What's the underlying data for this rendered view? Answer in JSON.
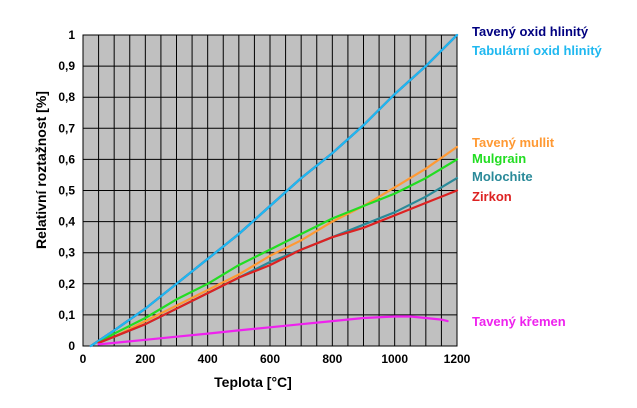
{
  "chart_data": {
    "type": "line",
    "xlabel": "Teplota [°C]",
    "ylabel": "Relativní roztažnost [%]",
    "xlim": [
      0,
      1200
    ],
    "ylim": [
      0,
      1
    ],
    "x_ticks": [
      "0",
      "200",
      "400",
      "600",
      "800",
      "1000",
      "1200"
    ],
    "y_ticks": [
      "0",
      "0,1",
      "0,2",
      "0,3",
      "0,4",
      "0,5",
      "0,6",
      "0,7",
      "0,8",
      "0,9",
      "1"
    ],
    "grid": true,
    "legend_position": "right",
    "series": [
      {
        "name": "Tavený oxid hlinitý",
        "color": "#000080",
        "x": [
          25,
          100,
          200,
          300,
          400,
          500,
          600,
          700,
          800,
          900,
          1000,
          1100,
          1200
        ],
        "y": [
          0.0,
          0.05,
          0.12,
          0.2,
          0.28,
          0.36,
          0.45,
          0.54,
          0.62,
          0.71,
          0.81,
          0.9,
          1.0
        ]
      },
      {
        "name": "Tabulární oxid hlinitý",
        "color": "#1fb8f0",
        "x": [
          25,
          100,
          200,
          300,
          400,
          500,
          600,
          700,
          800,
          900,
          1000,
          1100,
          1200
        ],
        "y": [
          0.0,
          0.05,
          0.12,
          0.2,
          0.28,
          0.36,
          0.45,
          0.54,
          0.62,
          0.71,
          0.81,
          0.9,
          1.0
        ]
      },
      {
        "name": "Tavený mullit",
        "color": "#ff9933",
        "x": [
          50,
          100,
          200,
          300,
          400,
          500,
          600,
          700,
          800,
          900,
          1000,
          1100,
          1200
        ],
        "y": [
          0.01,
          0.03,
          0.08,
          0.13,
          0.18,
          0.23,
          0.29,
          0.34,
          0.4,
          0.45,
          0.51,
          0.57,
          0.64
        ]
      },
      {
        "name": "Mulgrain",
        "color": "#22dd22",
        "x": [
          50,
          100,
          200,
          300,
          400,
          500,
          600,
          700,
          800,
          900,
          1000,
          1100,
          1200
        ],
        "y": [
          0.01,
          0.04,
          0.09,
          0.15,
          0.2,
          0.26,
          0.31,
          0.36,
          0.41,
          0.45,
          0.49,
          0.54,
          0.6
        ]
      },
      {
        "name": "Molochite",
        "color": "#2a8a99",
        "x": [
          50,
          100,
          200,
          300,
          400,
          500,
          600,
          700,
          800,
          900,
          1000,
          1100,
          1200
        ],
        "y": [
          0.01,
          0.03,
          0.07,
          0.12,
          0.17,
          0.22,
          0.27,
          0.31,
          0.35,
          0.39,
          0.43,
          0.48,
          0.54
        ]
      },
      {
        "name": "Zirkon",
        "color": "#dd2222",
        "x": [
          50,
          100,
          200,
          300,
          400,
          500,
          600,
          700,
          800,
          900,
          1000,
          1100,
          1200
        ],
        "y": [
          0.01,
          0.03,
          0.07,
          0.12,
          0.17,
          0.22,
          0.26,
          0.31,
          0.35,
          0.38,
          0.42,
          0.46,
          0.5
        ]
      },
      {
        "name": "Tavený křemen",
        "color": "#ee22ee",
        "x": [
          50,
          100,
          200,
          300,
          400,
          500,
          600,
          700,
          800,
          900,
          1000,
          1050,
          1100,
          1150,
          1170
        ],
        "y": [
          0.005,
          0.01,
          0.02,
          0.03,
          0.04,
          0.05,
          0.06,
          0.07,
          0.08,
          0.09,
          0.095,
          0.095,
          0.09,
          0.085,
          0.08
        ]
      }
    ]
  }
}
